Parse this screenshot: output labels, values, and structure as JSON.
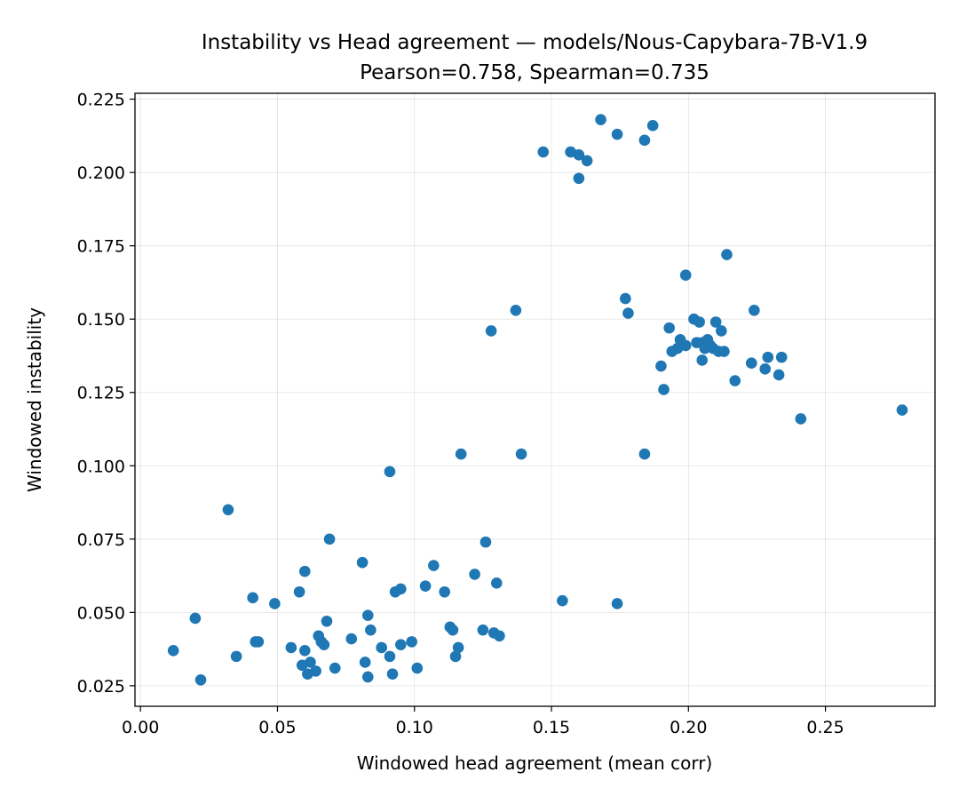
{
  "chart_data": {
    "type": "scatter",
    "title": "Instability vs Head agreement — models/Nous-Capybara-7B-V1.9",
    "subtitle": "Pearson=0.758, Spearman=0.735",
    "xlabel": "Windowed head agreement (mean corr)",
    "ylabel": "Windowed instability",
    "xlim": [
      -0.002,
      0.29
    ],
    "ylim": [
      0.018,
      0.227
    ],
    "xticks": [
      0.0,
      0.05,
      0.1,
      0.15,
      0.2,
      0.25
    ],
    "xtick_labels": [
      "0.00",
      "0.05",
      "0.10",
      "0.15",
      "0.20",
      "0.25"
    ],
    "yticks": [
      0.025,
      0.05,
      0.075,
      0.1,
      0.125,
      0.15,
      0.175,
      0.2,
      0.225
    ],
    "ytick_labels": [
      "0.025",
      "0.050",
      "0.075",
      "0.100",
      "0.125",
      "0.150",
      "0.175",
      "0.200",
      "0.225"
    ],
    "grid": true,
    "marker_color": "#1f77b4",
    "points": [
      [
        0.012,
        0.037
      ],
      [
        0.02,
        0.048
      ],
      [
        0.022,
        0.027
      ],
      [
        0.032,
        0.085
      ],
      [
        0.035,
        0.035
      ],
      [
        0.041,
        0.055
      ],
      [
        0.042,
        0.04
      ],
      [
        0.043,
        0.04
      ],
      [
        0.049,
        0.053
      ],
      [
        0.055,
        0.038
      ],
      [
        0.058,
        0.057
      ],
      [
        0.059,
        0.032
      ],
      [
        0.06,
        0.064
      ],
      [
        0.06,
        0.037
      ],
      [
        0.061,
        0.029
      ],
      [
        0.062,
        0.033
      ],
      [
        0.064,
        0.03
      ],
      [
        0.065,
        0.042
      ],
      [
        0.066,
        0.04
      ],
      [
        0.067,
        0.039
      ],
      [
        0.068,
        0.047
      ],
      [
        0.069,
        0.075
      ],
      [
        0.071,
        0.031
      ],
      [
        0.077,
        0.041
      ],
      [
        0.081,
        0.067
      ],
      [
        0.082,
        0.033
      ],
      [
        0.083,
        0.028
      ],
      [
        0.083,
        0.049
      ],
      [
        0.084,
        0.044
      ],
      [
        0.088,
        0.038
      ],
      [
        0.091,
        0.098
      ],
      [
        0.091,
        0.035
      ],
      [
        0.092,
        0.029
      ],
      [
        0.093,
        0.057
      ],
      [
        0.095,
        0.058
      ],
      [
        0.095,
        0.039
      ],
      [
        0.099,
        0.04
      ],
      [
        0.101,
        0.031
      ],
      [
        0.104,
        0.059
      ],
      [
        0.107,
        0.066
      ],
      [
        0.111,
        0.057
      ],
      [
        0.113,
        0.045
      ],
      [
        0.114,
        0.044
      ],
      [
        0.115,
        0.035
      ],
      [
        0.116,
        0.038
      ],
      [
        0.117,
        0.104
      ],
      [
        0.122,
        0.063
      ],
      [
        0.125,
        0.044
      ],
      [
        0.126,
        0.074
      ],
      [
        0.128,
        0.146
      ],
      [
        0.129,
        0.043
      ],
      [
        0.13,
        0.06
      ],
      [
        0.131,
        0.042
      ],
      [
        0.137,
        0.153
      ],
      [
        0.139,
        0.104
      ],
      [
        0.147,
        0.207
      ],
      [
        0.154,
        0.054
      ],
      [
        0.157,
        0.207
      ],
      [
        0.16,
        0.206
      ],
      [
        0.16,
        0.198
      ],
      [
        0.163,
        0.204
      ],
      [
        0.168,
        0.218
      ],
      [
        0.174,
        0.213
      ],
      [
        0.174,
        0.053
      ],
      [
        0.177,
        0.157
      ],
      [
        0.178,
        0.152
      ],
      [
        0.184,
        0.211
      ],
      [
        0.184,
        0.104
      ],
      [
        0.187,
        0.216
      ],
      [
        0.19,
        0.134
      ],
      [
        0.191,
        0.126
      ],
      [
        0.193,
        0.147
      ],
      [
        0.194,
        0.139
      ],
      [
        0.196,
        0.14
      ],
      [
        0.197,
        0.143
      ],
      [
        0.199,
        0.141
      ],
      [
        0.199,
        0.165
      ],
      [
        0.202,
        0.15
      ],
      [
        0.203,
        0.142
      ],
      [
        0.204,
        0.149
      ],
      [
        0.205,
        0.142
      ],
      [
        0.205,
        0.136
      ],
      [
        0.206,
        0.14
      ],
      [
        0.207,
        0.143
      ],
      [
        0.208,
        0.141
      ],
      [
        0.209,
        0.14
      ],
      [
        0.21,
        0.149
      ],
      [
        0.211,
        0.139
      ],
      [
        0.212,
        0.146
      ],
      [
        0.213,
        0.139
      ],
      [
        0.214,
        0.172
      ],
      [
        0.217,
        0.129
      ],
      [
        0.223,
        0.135
      ],
      [
        0.224,
        0.153
      ],
      [
        0.228,
        0.133
      ],
      [
        0.229,
        0.137
      ],
      [
        0.233,
        0.131
      ],
      [
        0.234,
        0.137
      ],
      [
        0.241,
        0.116
      ],
      [
        0.278,
        0.119
      ]
    ]
  }
}
